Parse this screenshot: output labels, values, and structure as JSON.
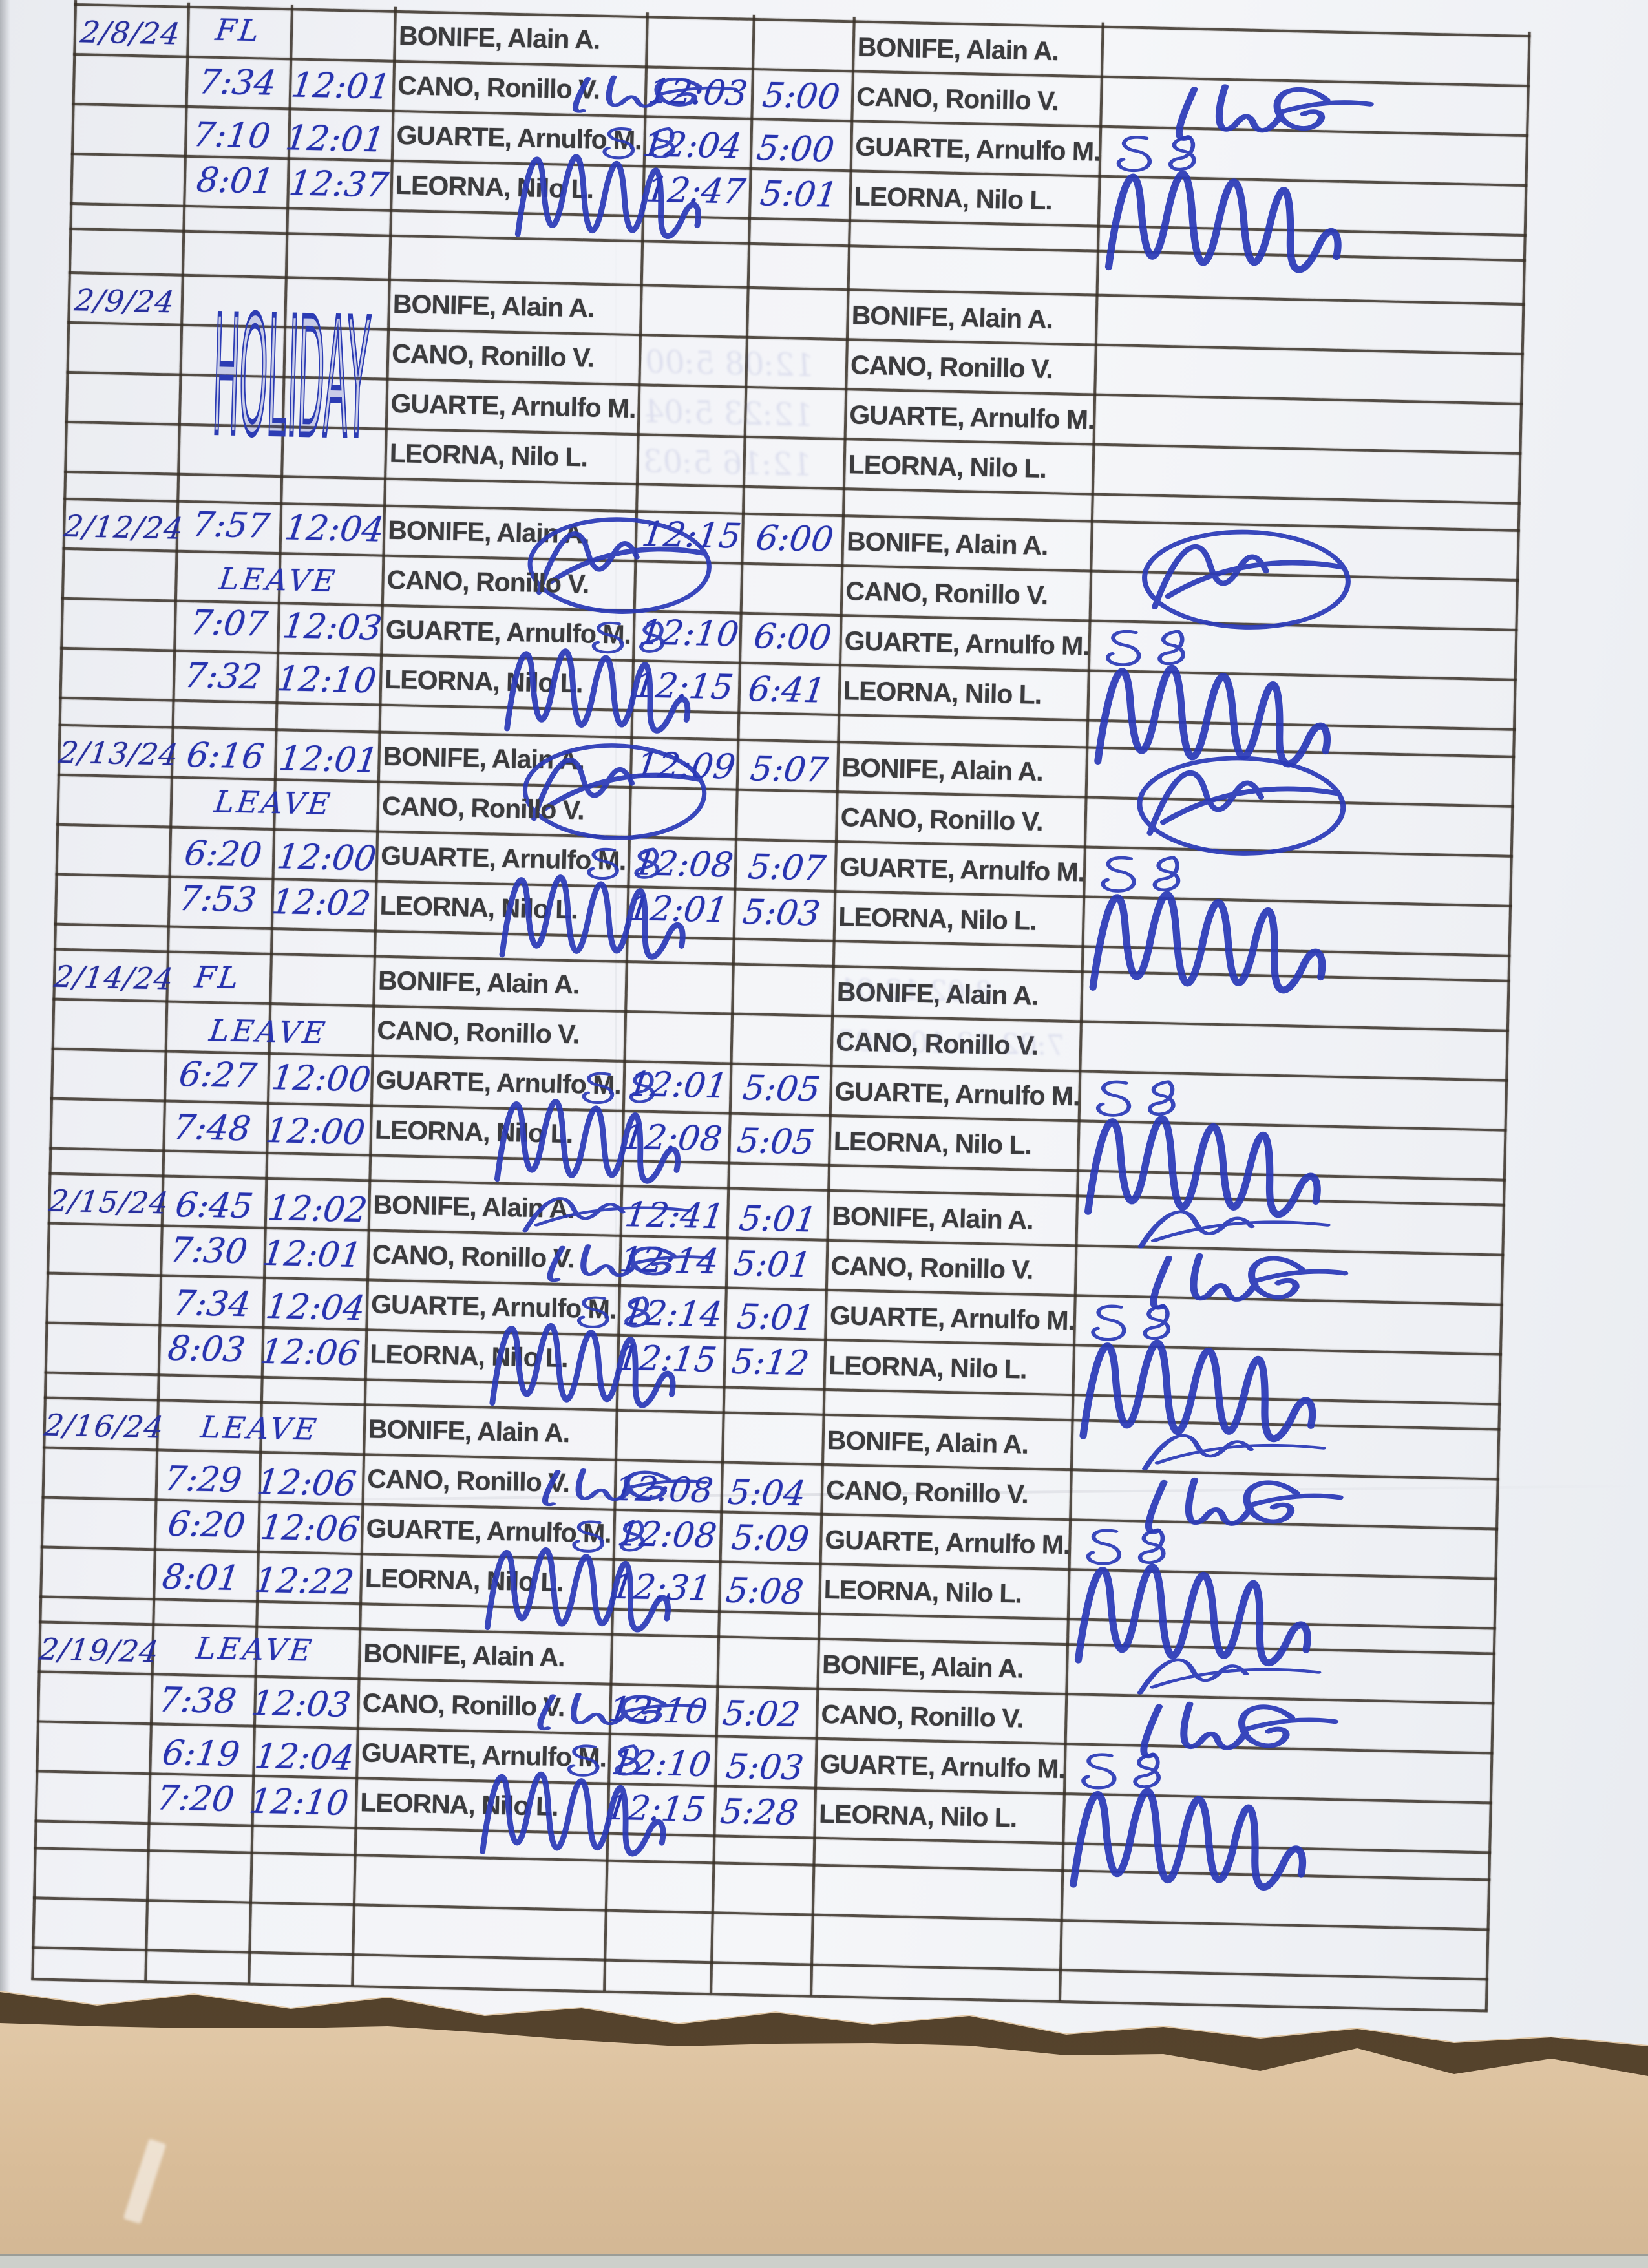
{
  "document_type": "scanned handwritten daily time record sheet",
  "employees": [
    "BONIFE, Alain A.",
    "CANO, Ronillo V.",
    "GUARTE, Arnulfo M.",
    "LEORNA, Nilo L."
  ],
  "blocks": [
    {
      "date": "2/8/24",
      "rows": [
        {
          "note": "FL"
        },
        {
          "am_in": "7:34",
          "am_out": "12:01",
          "pm_in": "12:03",
          "pm_out": "5:00"
        },
        {
          "am_in": "7:10",
          "am_out": "12:01",
          "pm_in": "12:04",
          "pm_out": "5:00"
        },
        {
          "am_in": "8:01",
          "am_out": "12:37",
          "pm_in": "12:47",
          "pm_out": "5:01"
        }
      ]
    },
    {
      "date": "2/9/24",
      "holiday": "HOLIDAY",
      "rows": [
        {},
        {},
        {},
        {}
      ]
    },
    {
      "date": "2/12/24",
      "rows": [
        {
          "am_in": "7:57",
          "am_out": "12:04",
          "pm_in": "12:15",
          "pm_out": "6:00",
          "sig_circled": true
        },
        {
          "note": "LEAVE"
        },
        {
          "am_in": "7:07",
          "am_out": "12:03",
          "pm_in": "12:10",
          "pm_out": "6:00"
        },
        {
          "am_in": "7:32",
          "am_out": "12:10",
          "pm_in": "12:15",
          "pm_out": "6:41"
        }
      ]
    },
    {
      "date": "2/13/24",
      "rows": [
        {
          "am_in": "6:16",
          "am_out": "12:01",
          "pm_in": "12:09",
          "pm_out": "5:07",
          "sig_circled": true
        },
        {
          "note": "LEAVE"
        },
        {
          "am_in": "6:20",
          "am_out": "12:00",
          "pm_in": "12:08",
          "pm_out": "5:07"
        },
        {
          "am_in": "7:53",
          "am_out": "12:02",
          "pm_in": "12:01",
          "pm_out": "5:03"
        }
      ]
    },
    {
      "date": "2/14/24",
      "rows": [
        {
          "note": "FL"
        },
        {
          "note": "LEAVE"
        },
        {
          "am_in": "6:27",
          "am_out": "12:00",
          "pm_in": "12:01",
          "pm_out": "5:05"
        },
        {
          "am_in": "7:48",
          "am_out": "12:00",
          "pm_in": "12:08",
          "pm_out": "5:05"
        }
      ]
    },
    {
      "date": "2/15/24",
      "rows": [
        {
          "am_in": "6:45",
          "am_out": "12:02",
          "pm_in": "12:41",
          "pm_out": "5:01"
        },
        {
          "am_in": "7:30",
          "am_out": "12:01",
          "pm_in": "12:14",
          "pm_out": "5:01"
        },
        {
          "am_in": "7:34",
          "am_out": "12:04",
          "pm_in": "12:14",
          "pm_out": "5:01"
        },
        {
          "am_in": "8:03",
          "am_out": "12:06",
          "pm_in": "12:15",
          "pm_out": "5:12"
        }
      ]
    },
    {
      "date": "2/16/24",
      "rows": [
        {
          "note": "LEAVE",
          "sig2": true
        },
        {
          "am_in": "7:29",
          "am_out": "12:06",
          "pm_in": "12:08",
          "pm_out": "5:04"
        },
        {
          "am_in": "6:20",
          "am_out": "12:06",
          "pm_in": "12:08",
          "pm_out": "5:09"
        },
        {
          "am_in": "8:01",
          "am_out": "12:22",
          "pm_in": "12:31",
          "pm_out": "5:08"
        }
      ]
    },
    {
      "date": "2/19/24",
      "rows": [
        {
          "note": "LEAVE",
          "sig2": true
        },
        {
          "am_in": "7:38",
          "am_out": "12:03",
          "pm_in": "12:10",
          "pm_out": "5:02"
        },
        {
          "am_in": "6:19",
          "am_out": "12:04",
          "pm_in": "12:10",
          "pm_out": "5:03"
        },
        {
          "am_in": "7:20",
          "am_out": "12:10",
          "pm_in": "12:15",
          "pm_out": "5:28"
        }
      ]
    }
  ],
  "bleed_through": {
    "holiday_block": [
      "12:08  5:00",
      "12:23  5:04",
      "12:16  5:03"
    ],
    "feb14_block": [
      "8:02  12:01",
      "7:02  12:10  5:05"
    ]
  },
  "colors": {
    "ink_blue": "#2834b0",
    "holiday_ink": "#2c3cb4",
    "grid_line": "#372f26",
    "paper": "#f2f3f6",
    "backing_tan": "#e0c8a8"
  }
}
